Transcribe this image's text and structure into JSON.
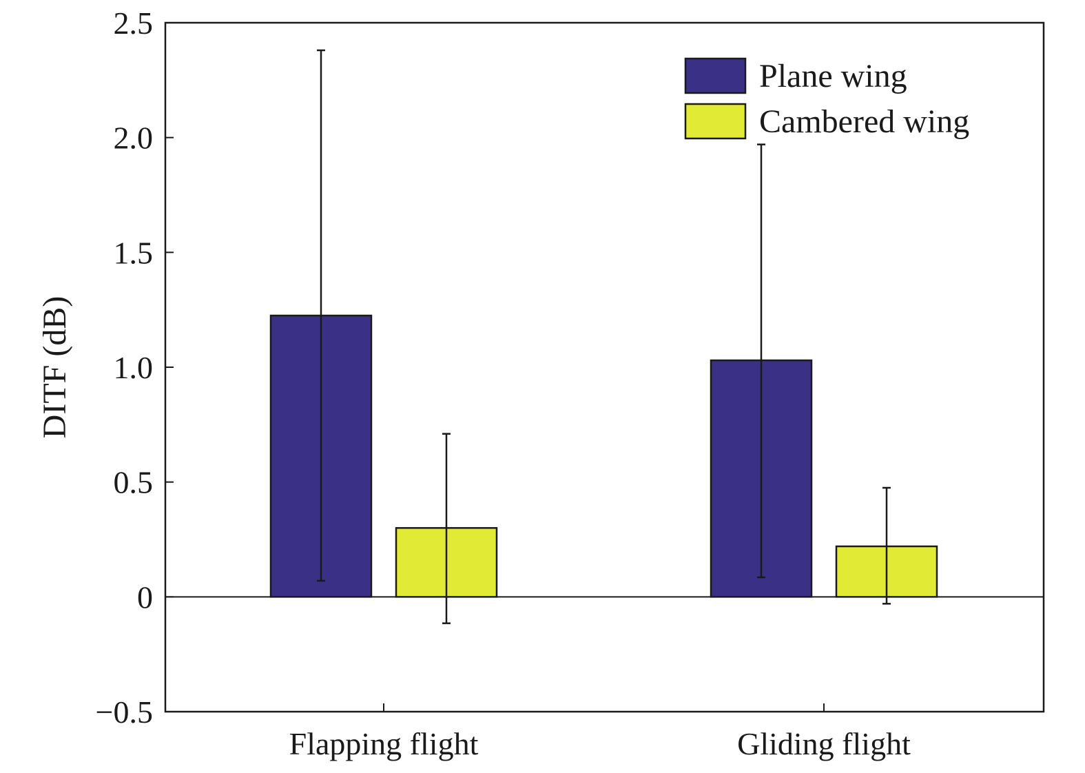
{
  "chart_data": {
    "type": "bar",
    "categories": [
      "Flapping flight",
      "Gliding flight"
    ],
    "series": [
      {
        "name": "Plane wing",
        "color": "#3a3186",
        "values": [
          1.225,
          1.03
        ],
        "error_low": [
          0.07,
          0.085
        ],
        "error_high": [
          2.38,
          1.97
        ]
      },
      {
        "name": "Cambered wing",
        "color": "#e1ea35",
        "values": [
          0.3,
          0.22
        ],
        "error_low": [
          -0.115,
          -0.03
        ],
        "error_high": [
          0.71,
          0.475
        ]
      }
    ],
    "ylabel": "DITF (dB)",
    "xlabel": "",
    "ylim": [
      -0.5,
      2.5
    ],
    "yticks": [
      -0.5,
      0,
      0.5,
      1.0,
      1.5,
      2.0,
      2.5
    ],
    "ytick_labels": [
      "−0.5",
      "0",
      "0.5",
      "1.0",
      "1.5",
      "2.0",
      "2.5"
    ],
    "grid": false,
    "legend_position": "top-right"
  }
}
